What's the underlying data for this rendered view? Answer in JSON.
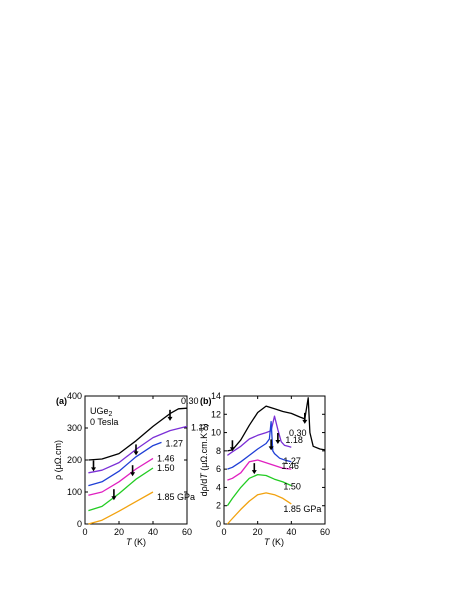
{
  "chart_data": [
    {
      "panel": "(a)",
      "type": "line",
      "title": "",
      "annotation_lines": [
        "UGe₂",
        "0 Tesla"
      ],
      "xlabel_italic": "T",
      "xlabel_unit": " (K)",
      "ylabel": "ρ (μΩ.cm)",
      "xlim": [
        0,
        60
      ],
      "ylim": [
        0,
        400
      ],
      "xticks": [
        0,
        20,
        40,
        60
      ],
      "yticks": [
        0,
        100,
        200,
        300,
        400
      ],
      "grid": false,
      "series": [
        {
          "name": "0.30",
          "color": "#000000",
          "x": [
            2,
            10,
            20,
            30,
            40,
            50,
            55,
            60
          ],
          "y": [
            200,
            203,
            220,
            260,
            305,
            345,
            360,
            362
          ],
          "arrow": [
            50,
            338
          ]
        },
        {
          "name": "1.18",
          "color": "#7b2fd6",
          "x": [
            2,
            10,
            20,
            30,
            40,
            50,
            60
          ],
          "y": [
            160,
            168,
            192,
            233,
            270,
            292,
            305
          ],
          "arrow": null
        },
        {
          "name": "1.27",
          "color": "#1f3fd6",
          "x": [
            2,
            10,
            20,
            30,
            40,
            45
          ],
          "y": [
            120,
            132,
            165,
            210,
            245,
            255
          ],
          "arrow": [
            30,
            230
          ]
        },
        {
          "name": "1.46",
          "color": "#e020c0",
          "x": [
            2,
            10,
            20,
            30,
            40
          ],
          "y": [
            90,
            100,
            132,
            172,
            205
          ],
          "arrow": [
            28,
            165
          ]
        },
        {
          "name": "1.50",
          "color": "#22cc22",
          "x": [
            2,
            10,
            20,
            30,
            40
          ],
          "y": [
            42,
            55,
            95,
            140,
            175
          ],
          "arrow": [
            17,
            90
          ]
        },
        {
          "name": "1.85 GPa",
          "color": "#f2a20f",
          "x": [
            2,
            10,
            20,
            30,
            40
          ],
          "y": [
            0,
            12,
            40,
            70,
            100
          ],
          "arrow": null
        }
      ],
      "extra_arrows": [
        [
          5,
          180
        ]
      ]
    },
    {
      "panel": "(b)",
      "type": "line",
      "title": "",
      "xlabel_italic": "T",
      "xlabel_unit": " (K)",
      "ylabel": "dρ/dT (μΩ.cm.K⁻¹)",
      "xlim": [
        0,
        60
      ],
      "ylim": [
        0,
        14
      ],
      "xticks": [
        0,
        20,
        40,
        60
      ],
      "yticks": [
        0,
        2,
        4,
        6,
        8,
        10,
        12,
        14
      ],
      "grid": false,
      "series": [
        {
          "name": "0.30",
          "color": "#000000",
          "x": [
            2,
            5,
            10,
            15,
            20,
            25,
            30,
            35,
            40,
            45,
            48,
            50,
            51,
            53,
            57,
            60
          ],
          "y": [
            8.0,
            8.1,
            9.2,
            10.8,
            12.2,
            12.9,
            12.6,
            12.3,
            12.1,
            11.7,
            11.5,
            13.8,
            10.0,
            8.5,
            8.2,
            8.1
          ],
          "arrow": [
            48,
            11.5
          ]
        },
        {
          "name": "1.18",
          "color": "#7b2fd6",
          "x": [
            2,
            5,
            10,
            15,
            20,
            25,
            28,
            30,
            32,
            34,
            36,
            38,
            40
          ],
          "y": [
            7.5,
            7.9,
            8.5,
            9.3,
            9.7,
            10.0,
            10.2,
            11.8,
            10.3,
            9.0,
            8.6,
            8.5,
            8.4
          ],
          "arrow": [
            32,
            9.3
          ]
        },
        {
          "name": "1.27",
          "color": "#1f3fd6",
          "x": [
            2,
            5,
            10,
            15,
            20,
            25,
            27,
            28,
            29,
            30,
            33,
            36,
            40
          ],
          "y": [
            6.0,
            6.2,
            6.8,
            7.5,
            8.2,
            8.8,
            9.3,
            11.2,
            8.0,
            7.7,
            7.2,
            7.0,
            6.8
          ],
          "arrow": [
            28,
            8.6
          ]
        },
        {
          "name": "1.46",
          "color": "#e020c0",
          "x": [
            2,
            5,
            10,
            15,
            20,
            25,
            30,
            35,
            40
          ],
          "y": [
            4.8,
            5.0,
            5.6,
            6.8,
            7.0,
            6.7,
            6.4,
            6.1,
            6.0
          ],
          "arrow": [
            5,
            8.5
          ]
        },
        {
          "name": "1.50",
          "color": "#22cc22",
          "x": [
            2,
            5,
            10,
            15,
            20,
            25,
            30,
            35,
            40
          ],
          "y": [
            2.0,
            2.8,
            4.0,
            5.0,
            5.4,
            5.3,
            4.9,
            4.6,
            4.2
          ],
          "arrow": [
            18,
            6.0
          ]
        },
        {
          "name": "1.85 GPa",
          "color": "#f2a20f",
          "x": [
            2,
            5,
            10,
            15,
            20,
            25,
            30,
            35,
            40
          ],
          "y": [
            0.0,
            0.6,
            1.6,
            2.5,
            3.2,
            3.4,
            3.2,
            2.8,
            2.2
          ],
          "arrow": null
        }
      ]
    }
  ]
}
